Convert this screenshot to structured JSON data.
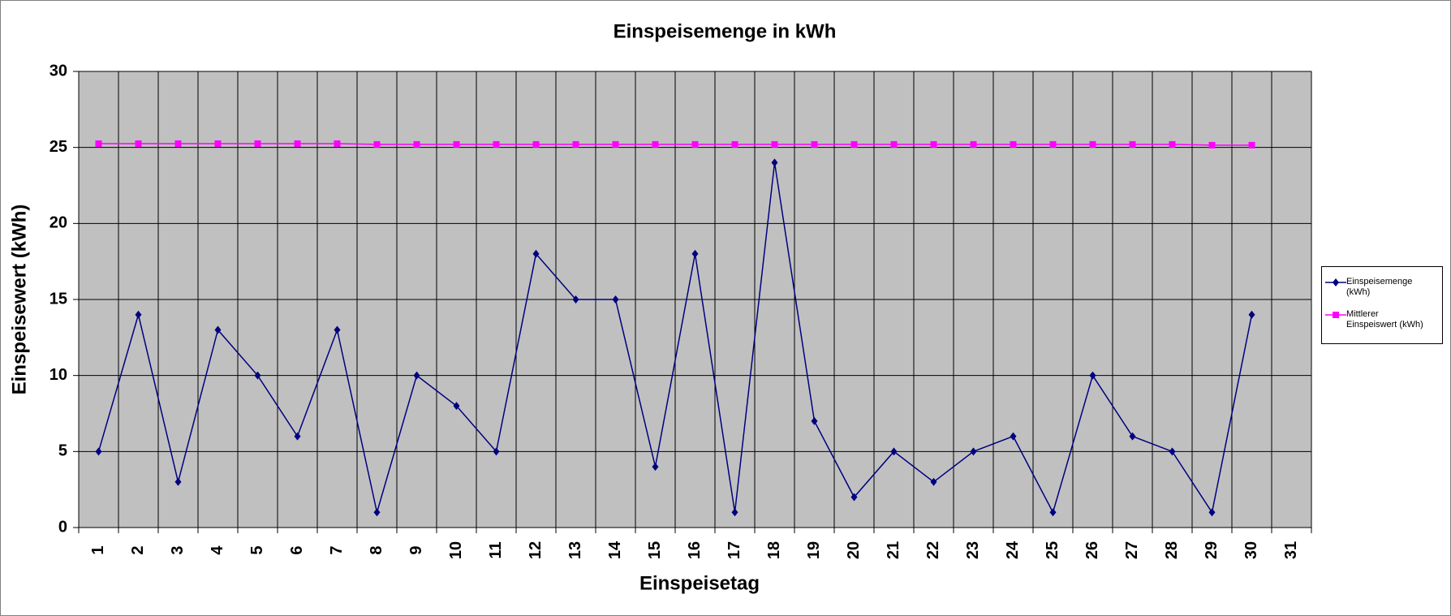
{
  "chart_data": {
    "type": "line",
    "title": "Einspeisemenge in kWh",
    "x_label": "Einspeisetag",
    "y_label": "Einspeisewert  (kWh)",
    "categories": [
      "1",
      "2",
      "3",
      "4",
      "5",
      "6",
      "7",
      "8",
      "9",
      "10",
      "11",
      "12",
      "13",
      "14",
      "15",
      "16",
      "17",
      "18",
      "19",
      "20",
      "21",
      "22",
      "23",
      "24",
      "25",
      "26",
      "27",
      "28",
      "29",
      "30",
      "31"
    ],
    "series": [
      {
        "name": "Einspeisemenge (kWh)",
        "color": "#000080",
        "marker": "diamond",
        "values": [
          5,
          14,
          3,
          13,
          10,
          6,
          13,
          1,
          10,
          8,
          5,
          18,
          15,
          15,
          4,
          18,
          1,
          24,
          7,
          2,
          5,
          3,
          5,
          6,
          1,
          10,
          6,
          5,
          1,
          14,
          null
        ]
      },
      {
        "name": "Mittlerer Einspeiswert (kWh)",
        "color": "#ff00ff",
        "marker": "square",
        "values": [
          25.25,
          25.25,
          25.25,
          25.25,
          25.25,
          25.25,
          25.25,
          25.2,
          25.2,
          25.2,
          25.2,
          25.2,
          25.2,
          25.2,
          25.2,
          25.2,
          25.2,
          25.2,
          25.2,
          25.2,
          25.2,
          25.2,
          25.2,
          25.2,
          25.2,
          25.2,
          25.2,
          25.2,
          25.15,
          25.15,
          null
        ]
      }
    ],
    "ylim": [
      0,
      30
    ],
    "yticks": [
      0,
      5,
      10,
      15,
      20,
      25,
      30
    ],
    "grid": true,
    "legend": "right"
  }
}
